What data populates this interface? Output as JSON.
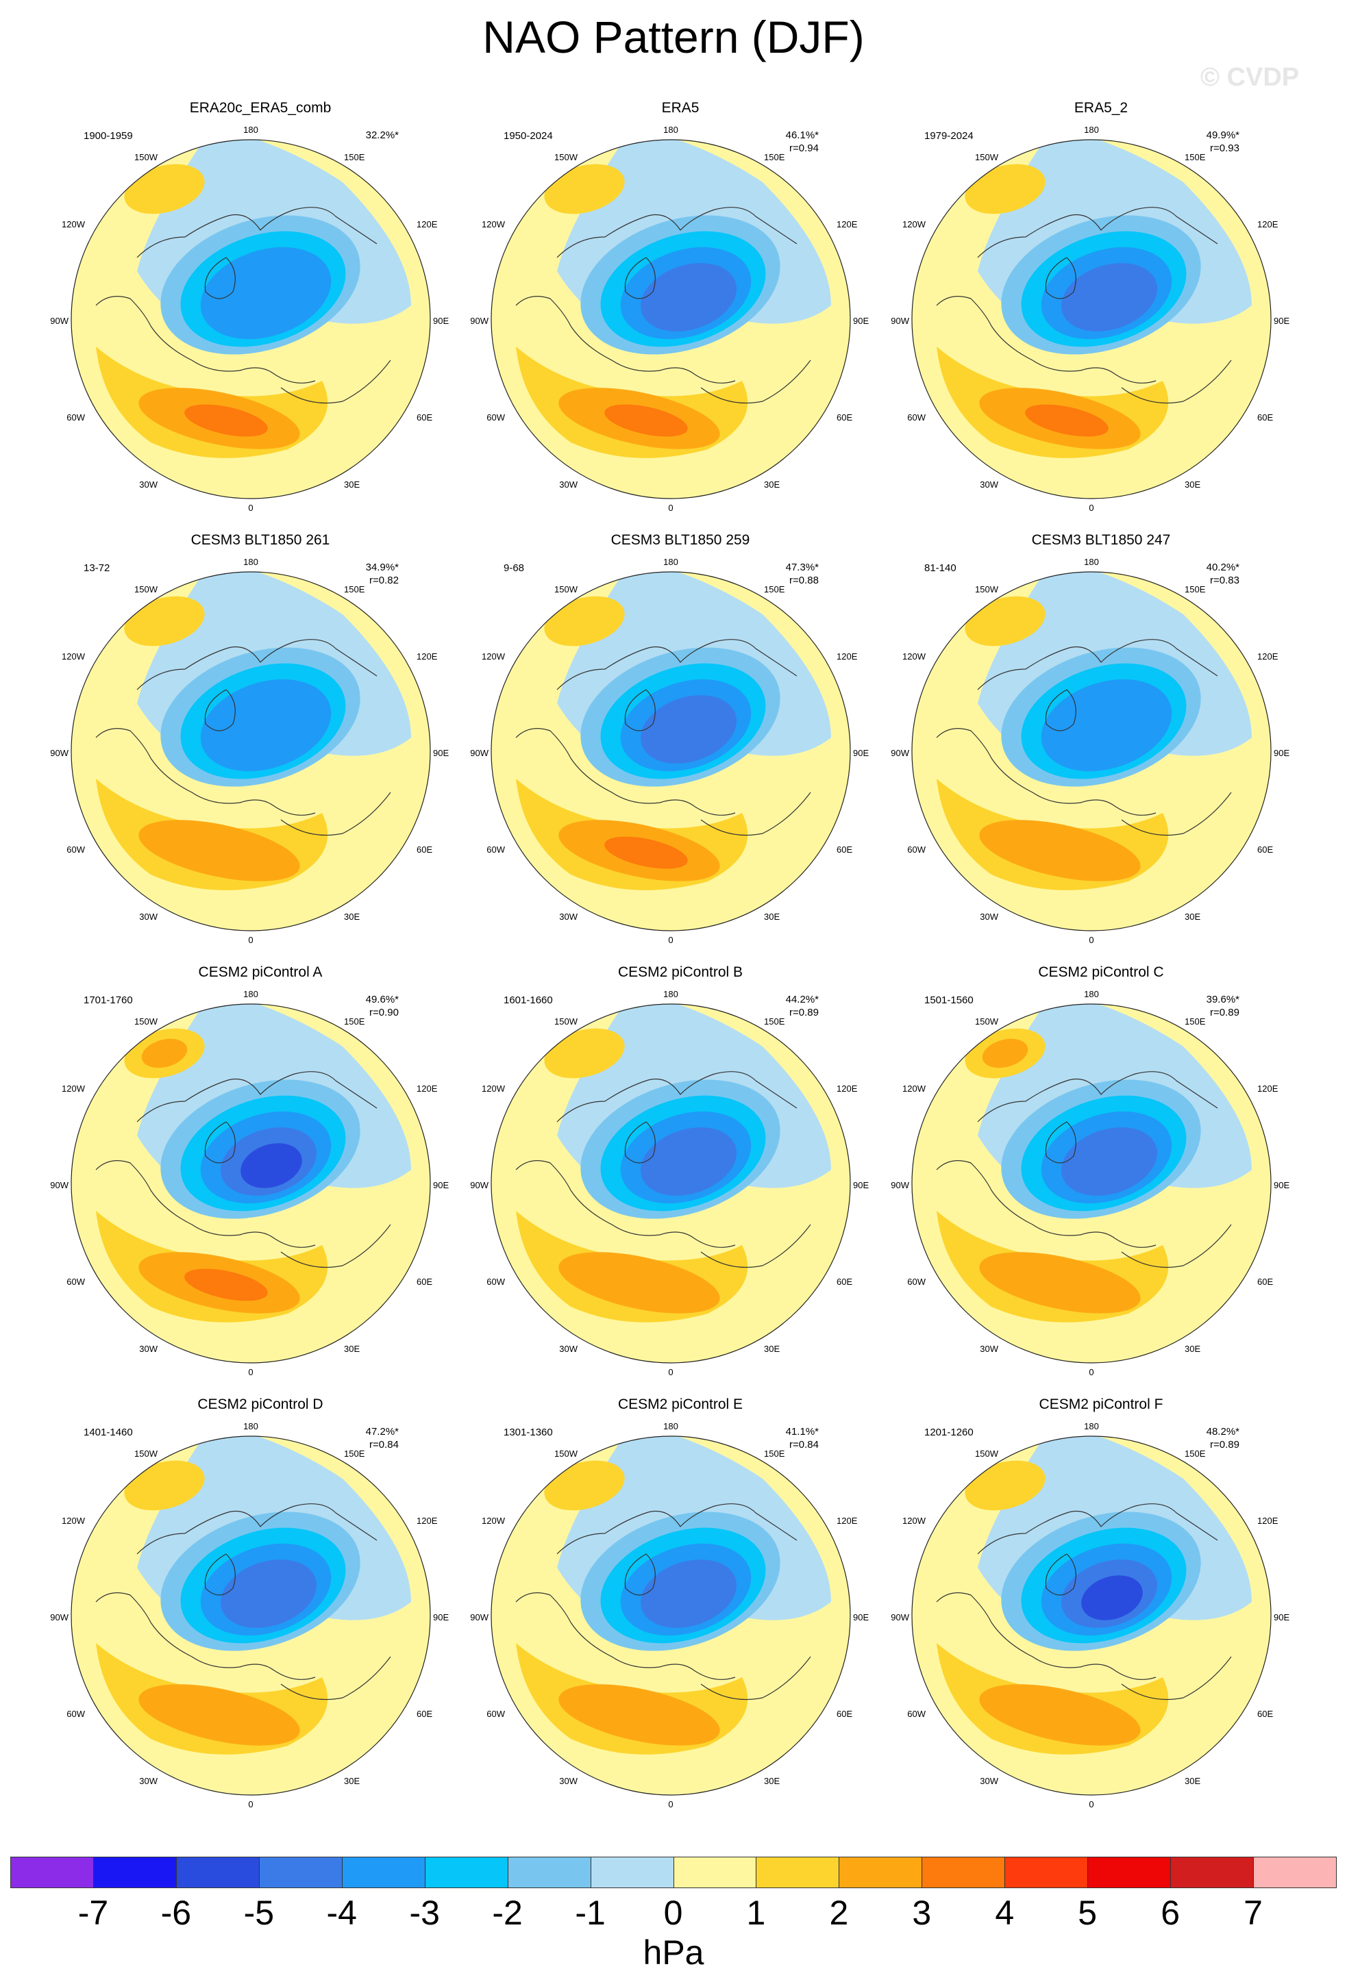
{
  "title": "NAO Pattern (DJF)",
  "watermark": "© CVDP",
  "lon_labels": {
    "top": "180",
    "bottom": "0",
    "left": [
      "150W",
      "120W",
      "90W",
      "60W",
      "30W"
    ],
    "right": [
      "150E",
      "120E",
      "90E",
      "60E",
      "30E"
    ]
  },
  "panels": [
    {
      "title": "ERA20c_ERA5_comb",
      "period": "1900-1959",
      "pct": "32.2%*",
      "r": ""
    },
    {
      "title": "ERA5",
      "period": "1950-2024",
      "pct": "46.1%*",
      "r": "r=0.94"
    },
    {
      "title": "ERA5_2",
      "period": "1979-2024",
      "pct": "49.9%*",
      "r": "r=0.93"
    },
    {
      "title": "CESM3 BLT1850 261",
      "period": "13-72",
      "pct": "34.9%*",
      "r": "r=0.82"
    },
    {
      "title": "CESM3 BLT1850 259",
      "period": "9-68",
      "pct": "47.3%*",
      "r": "r=0.88"
    },
    {
      "title": "CESM3 BLT1850 247",
      "period": "81-140",
      "pct": "40.2%*",
      "r": "r=0.83"
    },
    {
      "title": "CESM2 piControl A",
      "period": "1701-1760",
      "pct": "49.6%*",
      "r": "r=0.90"
    },
    {
      "title": "CESM2 piControl B",
      "period": "1601-1660",
      "pct": "44.2%*",
      "r": "r=0.89"
    },
    {
      "title": "CESM2 piControl C",
      "period": "1501-1560",
      "pct": "39.6%*",
      "r": "r=0.89"
    },
    {
      "title": "CESM2 piControl D",
      "period": "1401-1460",
      "pct": "47.2%*",
      "r": "r=0.84"
    },
    {
      "title": "CESM2 piControl E",
      "period": "1301-1360",
      "pct": "41.1%*",
      "r": "r=0.84"
    },
    {
      "title": "CESM2 piControl F",
      "period": "1201-1260",
      "pct": "48.2%*",
      "r": "r=0.89"
    }
  ],
  "colorbar": {
    "colors": [
      "#8c2ce8",
      "#1a17f5",
      "#2a4cde",
      "#3b7be8",
      "#1f9af7",
      "#06c5f8",
      "#78c6ef",
      "#b3ddf3",
      "#fff7a0",
      "#fdd42e",
      "#fda813",
      "#fd7a0c",
      "#fd3b0c",
      "#ee0505",
      "#d21e1e",
      "#fdb4b4"
    ],
    "ticks": [
      "-7",
      "-6",
      "-5",
      "-4",
      "-3",
      "-2",
      "-1",
      "0",
      "1",
      "2",
      "3",
      "4",
      "5",
      "6",
      "7"
    ],
    "units": "hPa"
  }
}
